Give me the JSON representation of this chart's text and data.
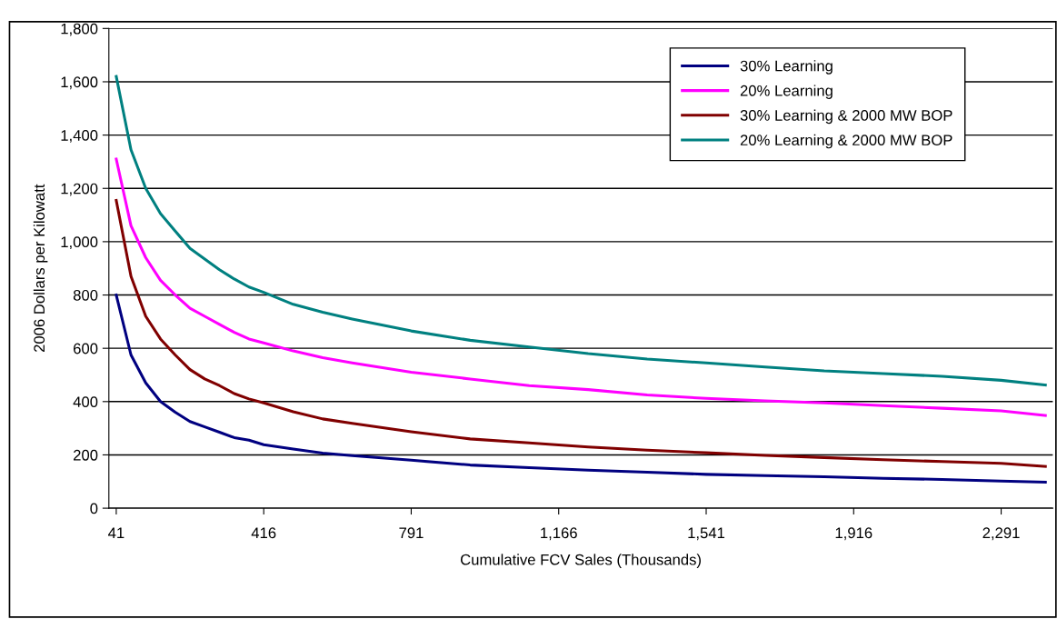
{
  "chart_data": {
    "type": "line",
    "xlabel": "Cumulative FCV Sales (Thousands)",
    "ylabel": "2006 Dollars per Kilowatt",
    "x": [
      41,
      78.5,
      116,
      153.5,
      191,
      228.5,
      266,
      303.5,
      341,
      378.5,
      416,
      491,
      566,
      641,
      791,
      941,
      1091,
      1241,
      1391,
      1541,
      1691,
      1841,
      1991,
      2141,
      2291,
      2403.5
    ],
    "series": [
      {
        "name": "30% Learning",
        "color": "#000080",
        "values": [
          800,
          575,
          470,
          400,
          360,
          325,
          305,
          285,
          265,
          255,
          238,
          222,
          207,
          197,
          180,
          162,
          152,
          143,
          135,
          127,
          122,
          118,
          112,
          108,
          102,
          98
        ]
      },
      {
        "name": "20% Learning",
        "color": "#ff00ff",
        "values": [
          1310,
          1060,
          940,
          855,
          800,
          750,
          720,
          690,
          660,
          635,
          620,
          590,
          565,
          545,
          510,
          485,
          460,
          445,
          425,
          412,
          403,
          395,
          385,
          375,
          365,
          348
        ]
      },
      {
        "name": "30% Learning & 2000 MW BOP",
        "color": "#800000",
        "values": [
          1155,
          870,
          720,
          635,
          575,
          520,
          485,
          460,
          430,
          410,
          395,
          362,
          335,
          318,
          287,
          260,
          245,
          230,
          218,
          208,
          198,
          190,
          182,
          175,
          168,
          157
        ]
      },
      {
        "name": "20% Learning & 2000 MW BOP",
        "color": "#008080",
        "values": [
          1620,
          1345,
          1200,
          1105,
          1040,
          975,
          935,
          895,
          860,
          830,
          810,
          765,
          735,
          710,
          665,
          630,
          605,
          580,
          560,
          545,
          530,
          515,
          505,
          495,
          480,
          462
        ]
      }
    ],
    "xlim": [
      22.25,
      2422.25
    ],
    "xticks": [
      {
        "value": 41,
        "label": "41"
      },
      {
        "value": 416,
        "label": "416"
      },
      {
        "value": 791,
        "label": "791"
      },
      {
        "value": 1166,
        "label": "1,166"
      },
      {
        "value": 1541,
        "label": "1,541"
      },
      {
        "value": 1916,
        "label": "1,916"
      },
      {
        "value": 2291,
        "label": "2,291"
      }
    ],
    "ylim": [
      0,
      1800
    ],
    "yticks": [
      0,
      {
        "value": 200,
        "label": "200"
      },
      {
        "value": 400,
        "label": "400"
      },
      {
        "value": 600,
        "label": "600"
      },
      {
        "value": 800,
        "label": "800"
      },
      {
        "value": 1000,
        "label": "1,000"
      },
      {
        "value": 1200,
        "label": "1,200"
      },
      {
        "value": 1400,
        "label": "1,400"
      },
      {
        "value": 1600,
        "label": "1,600"
      },
      {
        "value": 1800,
        "label": "1,800"
      }
    ],
    "grid": "y",
    "legend": "top right",
    "marker": "none",
    "line_style": "solid"
  }
}
